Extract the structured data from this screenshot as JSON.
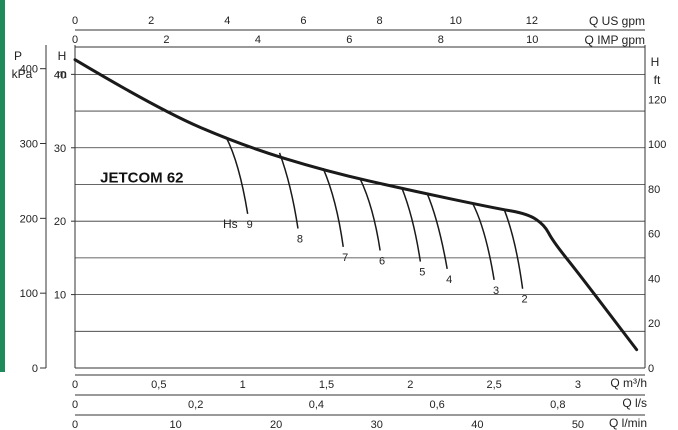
{
  "colors": {
    "accent_bar": "#1f8a5c",
    "grid": "#333333",
    "curve": "#1a1a1a",
    "text": "#222222"
  },
  "chart_data": {
    "type": "line",
    "title": "JETCOM 62",
    "left_outer_axis": {
      "unit_top": "P",
      "unit_bottom": "kPa",
      "ticks": [
        "400",
        "300",
        "200",
        "100",
        "0"
      ]
    },
    "left_inner_axis": {
      "unit_top": "H",
      "unit_bottom": "m",
      "ticks": [
        "40",
        "30",
        "20",
        "10"
      ]
    },
    "right_axis": {
      "unit_top": "H",
      "unit_bottom": "ft",
      "ticks": [
        "120",
        "100",
        "80",
        "60",
        "40",
        "20",
        "0"
      ]
    },
    "top_axes": [
      {
        "label": "Q US gpm",
        "ticks": [
          "0",
          "2",
          "4",
          "6",
          "8",
          "10",
          "12"
        ]
      },
      {
        "label": "Q IMP gpm",
        "ticks": [
          "0",
          "2",
          "4",
          "6",
          "8",
          "10"
        ]
      }
    ],
    "bottom_axes": [
      {
        "label": "Q m³/h",
        "ticks": [
          "0",
          "0,5",
          "1",
          "1,5",
          "2",
          "2,5",
          "3"
        ]
      },
      {
        "label": "Q l/s",
        "ticks": [
          "0",
          "0,2",
          "0,4",
          "0,6",
          "0,8"
        ]
      },
      {
        "label": "Q l/min",
        "ticks": [
          "0",
          "10",
          "20",
          "30",
          "40",
          "50"
        ]
      }
    ],
    "xlim_m3h": [
      0,
      3.4
    ],
    "ylim_m": [
      0,
      44
    ],
    "series": [
      {
        "name": "",
        "x": [
          0,
          0.5,
          1.0,
          1.5,
          2.0,
          2.5,
          2.7,
          2.8,
          2.85,
          3.0,
          3.2,
          3.35
        ],
        "y": [
          42,
          35.2,
          30.3,
          26.8,
          24.2,
          21.8,
          21.0,
          19.5,
          17.3,
          13.0,
          7.0,
          2.5
        ]
      }
    ],
    "hs_label": "Hs",
    "hs_curves": [
      {
        "label": "9",
        "x": [
          0.9,
          0.98,
          1.03
        ],
        "y": [
          31.5,
          28,
          21
        ]
      },
      {
        "label": "8",
        "x": [
          1.22,
          1.29,
          1.33
        ],
        "y": [
          29.3,
          25,
          19
        ]
      },
      {
        "label": "7",
        "x": [
          1.48,
          1.56,
          1.6
        ],
        "y": [
          27.2,
          23,
          16.5
        ]
      },
      {
        "label": "6",
        "x": [
          1.7,
          1.78,
          1.82
        ],
        "y": [
          25.8,
          22,
          16
        ]
      },
      {
        "label": "5",
        "x": [
          1.95,
          2.02,
          2.06
        ],
        "y": [
          24.5,
          20.5,
          14.5
        ]
      },
      {
        "label": "4",
        "x": [
          2.1,
          2.17,
          2.22
        ],
        "y": [
          23.8,
          20,
          13.5
        ]
      },
      {
        "label": "3",
        "x": [
          2.37,
          2.45,
          2.5
        ],
        "y": [
          22.5,
          19,
          12
        ]
      },
      {
        "label": "2",
        "x": [
          2.56,
          2.63,
          2.67
        ],
        "y": [
          21.6,
          17.5,
          10.8
        ]
      }
    ]
  }
}
